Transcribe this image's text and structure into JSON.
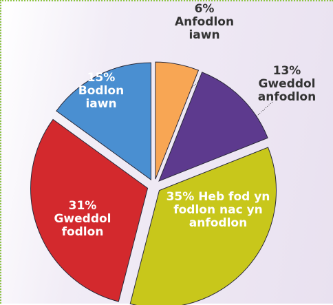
{
  "chart_data": {
    "type": "pie",
    "categories": [
      "Anfodlon iawn",
      "Gweddol anfodlon",
      "Heb fod yn fodlon nac yn anfodlon",
      "Gweddol fodlon",
      "Bodlon iawn"
    ],
    "values": [
      6,
      13,
      35,
      31,
      15
    ],
    "value_labels": [
      "6%",
      "13%",
      "35%",
      "31%",
      "15%"
    ],
    "colors": [
      "#f8a654",
      "#5d3a8e",
      "#c8c71b",
      "#d3292d",
      "#4a8fd1"
    ]
  }
}
